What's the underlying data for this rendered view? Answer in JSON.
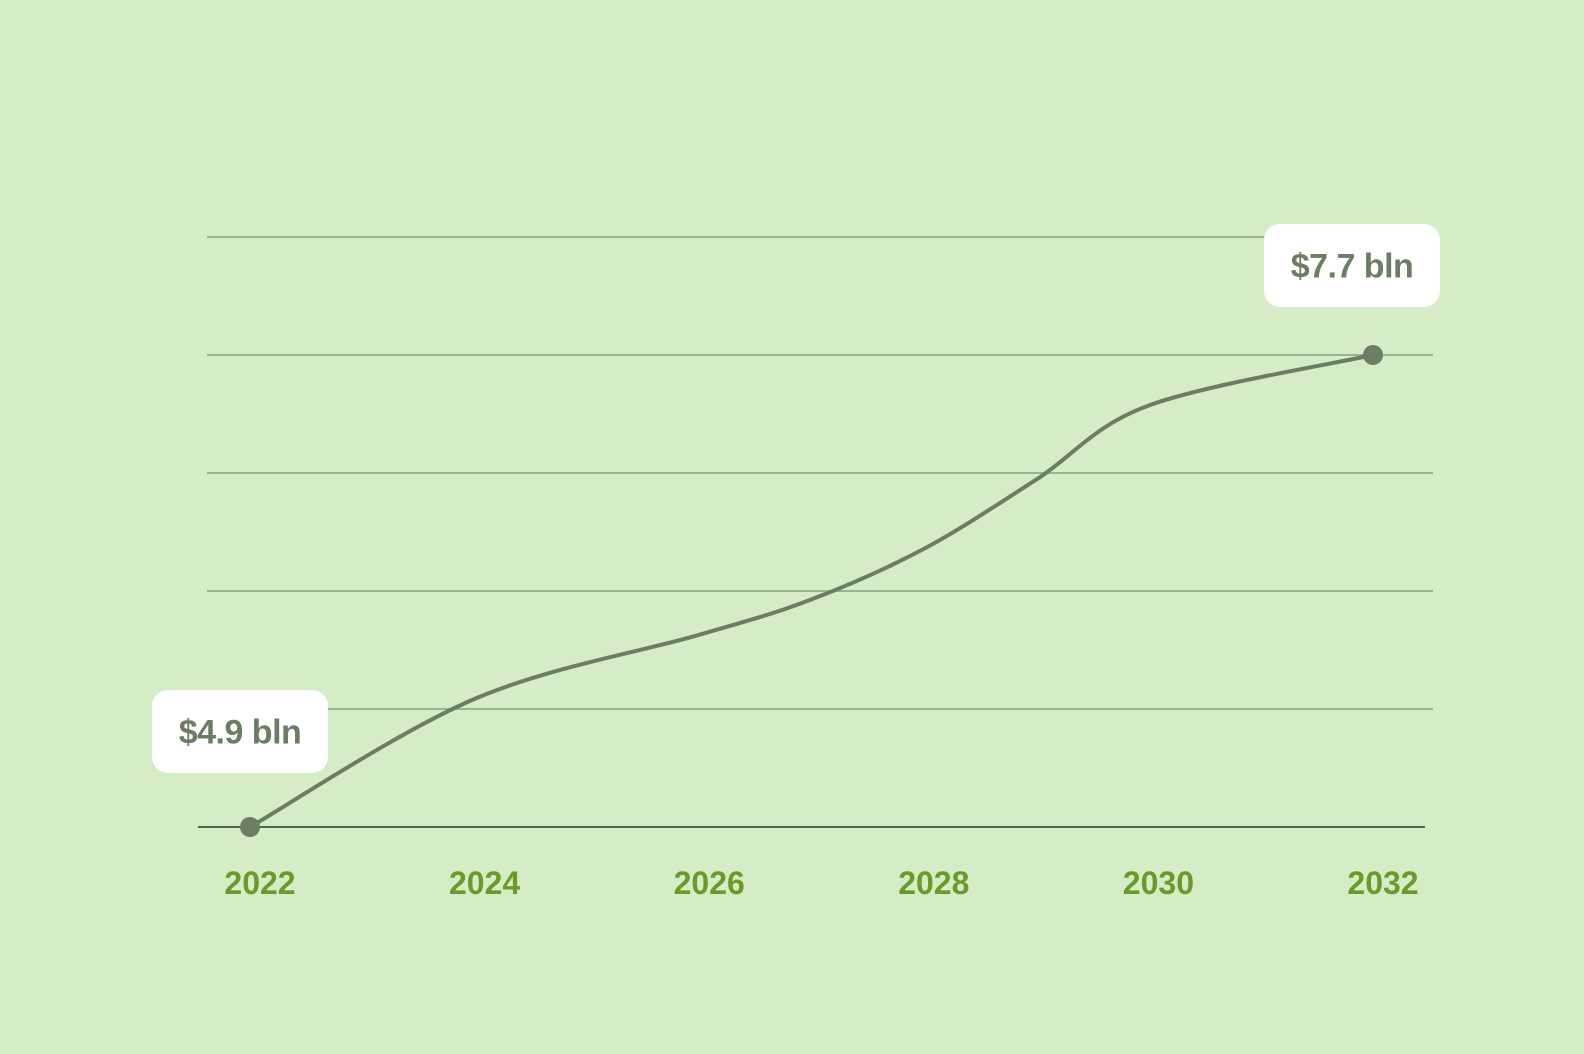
{
  "chart_data": {
    "type": "line",
    "title": "",
    "xlabel": "",
    "ylabel": "",
    "x_ticks": [
      "2022",
      "2024",
      "2026",
      "2028",
      "2030",
      "2032"
    ],
    "xlim": [
      2022,
      2032
    ],
    "ylim": [
      4.9,
      8.4
    ],
    "grid": true,
    "series": [
      {
        "x": [
          2022,
          2024,
          2026,
          2027,
          2028,
          2029,
          2030,
          2032
        ],
        "y": [
          4.9,
          5.66,
          6.04,
          6.25,
          6.55,
          6.96,
          7.4,
          7.7
        ]
      }
    ],
    "annotations": [
      {
        "x": 2022,
        "y": 4.9,
        "label": "$4.9 bln",
        "side": "above-left"
      },
      {
        "x": 2032,
        "y": 7.7,
        "label": "$7.7 bln",
        "side": "above-right"
      }
    ],
    "colors": {
      "background": "#d6ecc7",
      "line": "#6b7d62",
      "grid": "#98b38e",
      "axis": "#4f6a4a",
      "tick_labels": "#6a9a2a",
      "callout_bg": "#ffffff"
    }
  }
}
